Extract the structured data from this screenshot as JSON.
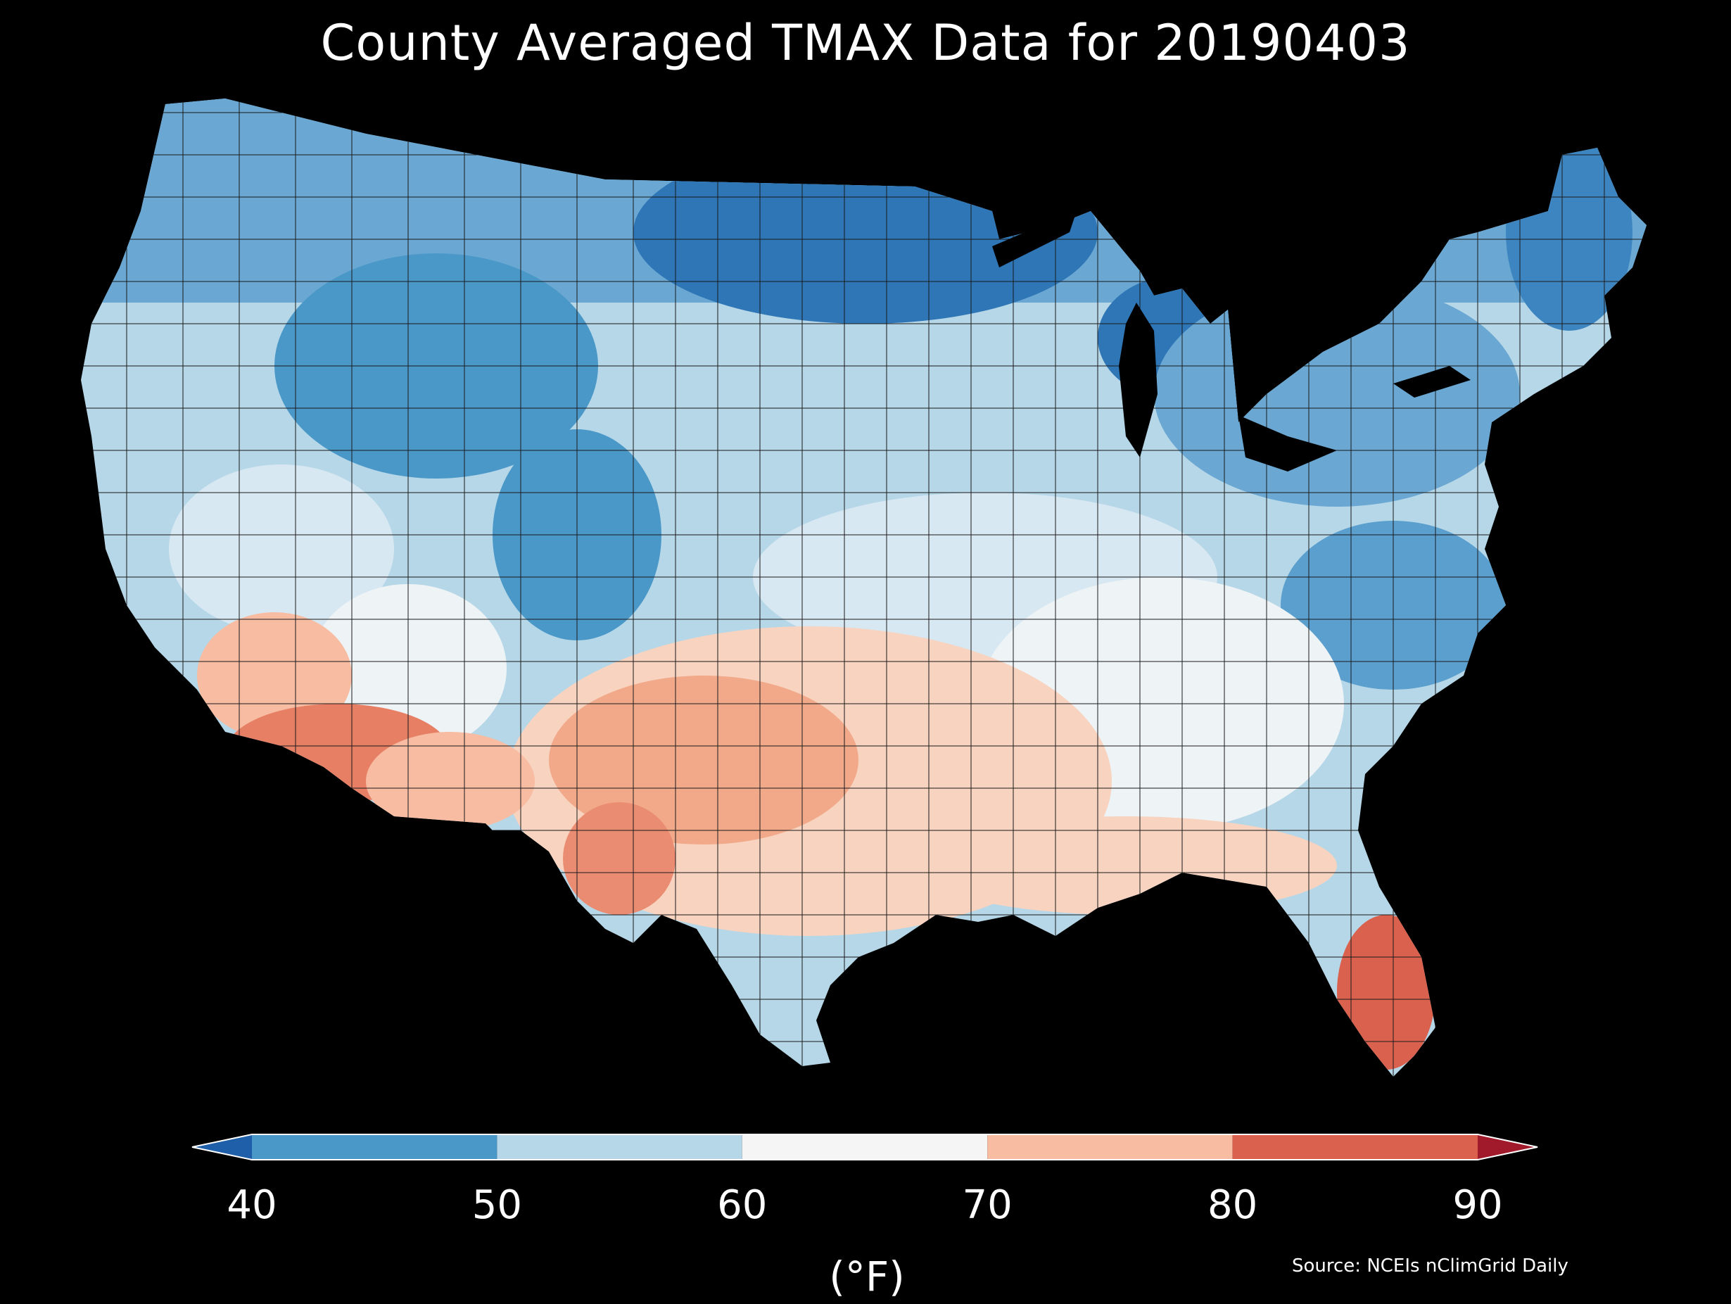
{
  "title": "County Averaged TMAX Data for 20190403",
  "source": "Source: NCEIs nClimGrid Daily",
  "colorbar": {
    "unit_label": "(°F)",
    "ticks": [
      "40",
      "50",
      "60",
      "70",
      "80",
      "90"
    ],
    "bins": [
      {
        "range": "<40",
        "color": "#1f5ea8"
      },
      {
        "range": "40-50",
        "color": "#4a98c8"
      },
      {
        "range": "50-60",
        "color": "#b6d7e8"
      },
      {
        "range": "60-70",
        "color": "#f5f5f5"
      },
      {
        "range": "70-80",
        "color": "#f7bca1"
      },
      {
        "range": "80-90",
        "color": "#d9614d"
      },
      {
        "range": ">90",
        "color": "#a01a2c"
      }
    ]
  },
  "colors": {
    "background": "#000000",
    "county_border": "#1a1a1a"
  }
}
